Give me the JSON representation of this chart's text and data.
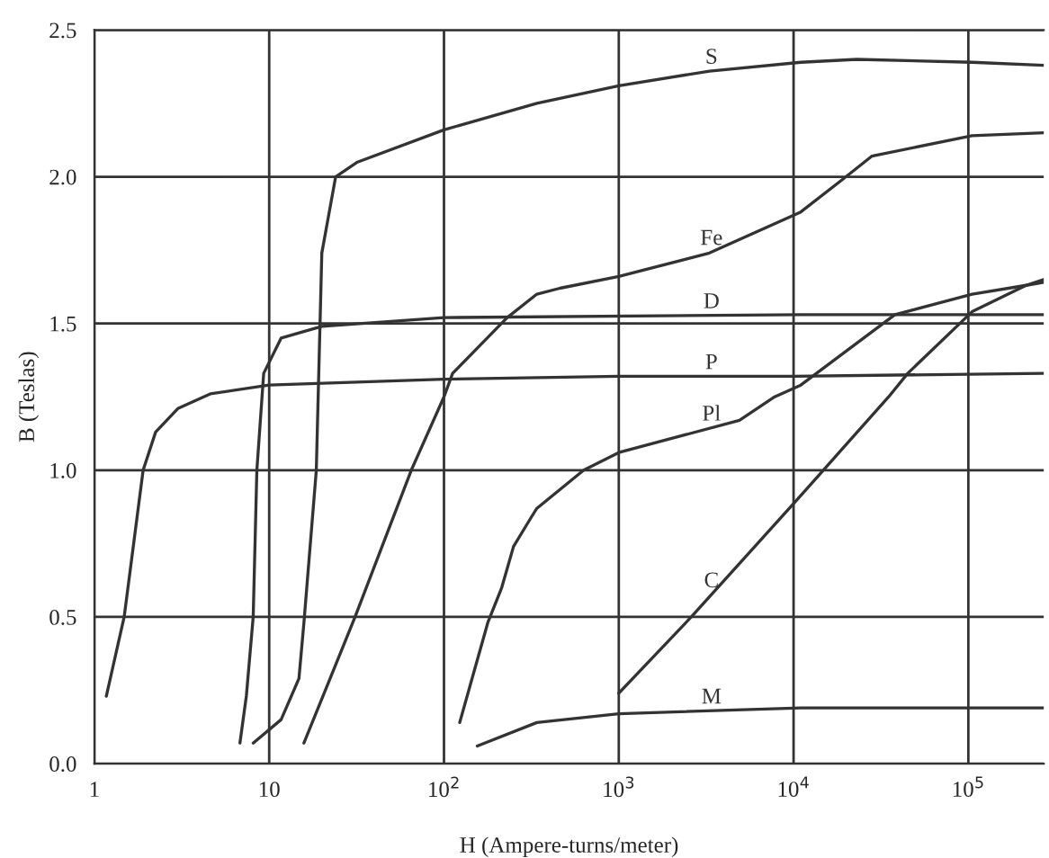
{
  "chart_data": {
    "type": "line",
    "xlabel": "H (Ampere-turns/meter)",
    "ylabel": "B (Teslas)",
    "log": "x",
    "grid": true,
    "marker": "none",
    "line_style": "solid",
    "xlim": [
      1,
      270000
    ],
    "xticks": [
      1,
      10,
      {
        "value": 100,
        "label": "10$^{2}$"
      },
      {
        "value": 1000,
        "label": "10$^{3}$"
      },
      {
        "value": 10000,
        "label": "10$^{4}$"
      },
      {
        "value": 100000,
        "label": "10$^{5}$"
      }
    ],
    "ylim": [
      0,
      2.5
    ],
    "yticks": [
      {
        "value": 0,
        "label": "0.0"
      },
      {
        "value": 0.5,
        "label": "0.5"
      },
      {
        "value": 1,
        "label": "1.0"
      },
      {
        "value": 1.5,
        "label": "1.5"
      },
      {
        "value": 2,
        "label": "2.0"
      },
      {
        "value": 2.5,
        "label": "2.5"
      }
    ],
    "series": [
      {
        "name": "S",
        "color": "#333333",
        "x": [
          8.1,
          11.7,
          14.8,
          15.8,
          18.6,
          20,
          24,
          32,
          100,
          340,
          1000,
          3300,
          11000,
          23000,
          105000,
          270000
        ],
        "values": [
          0.07,
          0.15,
          0.29,
          0.48,
          1.0,
          1.74,
          2.0,
          2.05,
          2.16,
          2.25,
          2.31,
          2.36,
          2.39,
          2.4,
          2.39,
          2.38
        ]
      },
      {
        "name": "Fe",
        "color": "#333333",
        "x": [
          15.8,
          31,
          65,
          100,
          112,
          230,
          340,
          460,
          1000,
          3300,
          11000,
          19000,
          28000,
          105000,
          270000
        ],
        "values": [
          0.07,
          0.5,
          1.0,
          1.25,
          1.33,
          1.52,
          1.6,
          1.62,
          1.66,
          1.74,
          1.88,
          1.99,
          2.07,
          2.14,
          2.15
        ]
      },
      {
        "name": "D",
        "color": "#333333",
        "x": [
          6.8,
          7.4,
          8.1,
          8.5,
          9.1,
          9.3,
          11.7,
          20,
          100,
          11000,
          270000
        ],
        "values": [
          0.07,
          0.23,
          0.5,
          1.0,
          1.25,
          1.33,
          1.45,
          1.49,
          1.52,
          1.53,
          1.53
        ]
      },
      {
        "name": "P",
        "color": "#333333",
        "x": [
          1.17,
          1.48,
          1.9,
          2.24,
          3.0,
          4.6,
          10,
          100,
          1000,
          10000,
          270000
        ],
        "values": [
          0.23,
          0.5,
          1.0,
          1.13,
          1.21,
          1.26,
          1.29,
          1.31,
          1.32,
          1.32,
          1.33
        ]
      },
      {
        "name": "Pl",
        "color": "#333333",
        "x": [
          123,
          178,
          214,
          250,
          316,
          340,
          630,
          1000,
          4900,
          7800,
          11000,
          38000,
          105000,
          214000,
          270000
        ],
        "values": [
          0.14,
          0.48,
          0.6,
          0.74,
          0.84,
          0.87,
          1.0,
          1.06,
          1.17,
          1.25,
          1.29,
          1.53,
          1.6,
          1.63,
          1.64
        ]
      },
      {
        "name": "C",
        "color": "#333333",
        "x": [
          1000,
          2600,
          10500,
          14800,
          35000,
          45000,
          105000,
          214000,
          270000
        ],
        "values": [
          0.24,
          0.5,
          0.9,
          1.0,
          1.25,
          1.33,
          1.54,
          1.63,
          1.65
        ]
      },
      {
        "name": "M",
        "color": "#333333",
        "x": [
          155,
          340,
          1000,
          11000,
          270000
        ],
        "values": [
          0.06,
          0.14,
          0.17,
          0.19,
          0.19
        ]
      }
    ],
    "legend": false
  }
}
